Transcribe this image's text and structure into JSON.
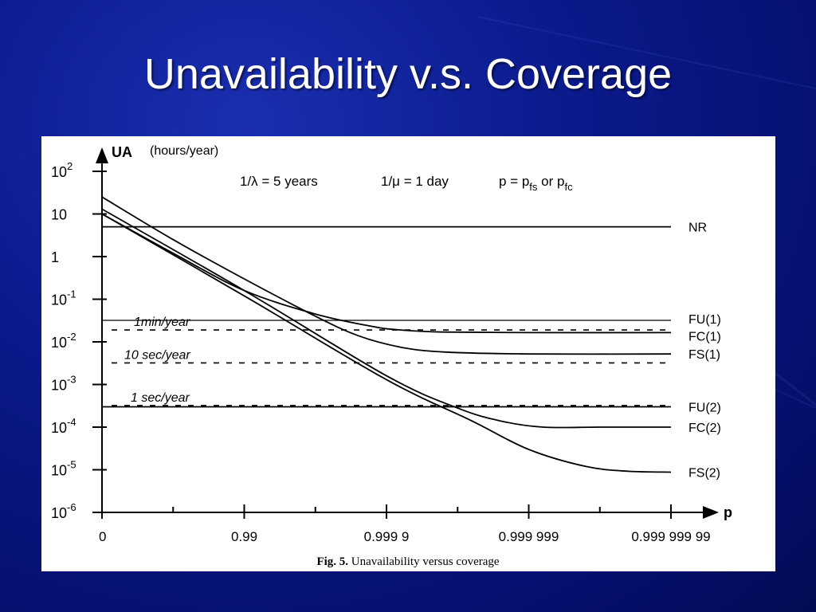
{
  "slide": {
    "title": "Unavailability v.s. Coverage"
  },
  "chart_data": {
    "type": "line",
    "y_scale": "log",
    "ylabel": "UA",
    "ylabel_unit": "(hours/year)",
    "xlabel": "p",
    "x_ticks": [
      "0",
      "0.99",
      "0.999 9",
      "0.999 999",
      "0.999 999 99"
    ],
    "y_ticks": [
      {
        "base": "10",
        "exp": "2",
        "value": 100
      },
      {
        "base": "10",
        "exp": "",
        "value": 10
      },
      {
        "base": "1",
        "exp": "",
        "value": 1
      },
      {
        "base": "10",
        "exp": "-1",
        "value": 0.1
      },
      {
        "base": "10",
        "exp": "-2",
        "value": 0.01
      },
      {
        "base": "10",
        "exp": "-3",
        "value": 0.001
      },
      {
        "base": "10",
        "exp": "-4",
        "value": 0.0001
      },
      {
        "base": "10",
        "exp": "-5",
        "value": 1e-05
      },
      {
        "base": "10",
        "exp": "-6",
        "value": 1e-06
      }
    ],
    "ylim": [
      1e-06,
      100
    ],
    "annotation": {
      "lambda_text": "1/λ = 5 years",
      "mu_text": "1/μ = 1 day",
      "p_prefix": "p = p",
      "p_sub1": "fs",
      "p_or": " or p",
      "p_sub2": "fc"
    },
    "reference_lines": [
      {
        "label": "1min/year",
        "value": 0.019
      },
      {
        "label": "10 sec/year",
        "value": 0.0032
      },
      {
        "label": "1 sec/year",
        "value": 0.00032
      }
    ],
    "series": [
      {
        "name": "NR",
        "x": [
          0,
          4
        ],
        "y": [
          5,
          5
        ]
      },
      {
        "name": "FU(1)",
        "x": [
          0,
          4
        ],
        "y": [
          0.032,
          0.032
        ]
      },
      {
        "name": "FC(1)",
        "x": [
          0,
          0.5,
          1,
          1.5,
          1.9,
          2.1,
          2.4,
          3,
          4
        ],
        "y": [
          10,
          1.2,
          0.16,
          0.045,
          0.023,
          0.019,
          0.017,
          0.0165,
          0.0165
        ]
      },
      {
        "name": "FS(1)",
        "x": [
          0,
          0.5,
          1,
          1.5,
          1.8,
          2.1,
          2.4,
          3,
          4
        ],
        "y": [
          25,
          2.5,
          0.3,
          0.04,
          0.014,
          0.0075,
          0.0058,
          0.0052,
          0.0052
        ]
      },
      {
        "name": "FU(2)",
        "x": [
          0,
          4
        ],
        "y": [
          0.0003,
          0.0003
        ]
      },
      {
        "name": "FC(2)",
        "x": [
          0,
          1,
          2,
          2.5,
          2.8,
          3.1,
          3.5,
          4
        ],
        "y": [
          13,
          0.16,
          0.0016,
          0.00028,
          0.00014,
          0.0001,
          0.0001,
          0.0001
        ]
      },
      {
        "name": "FS(2)",
        "x": [
          0,
          1,
          2,
          2.6,
          3,
          3.4,
          3.7,
          4
        ],
        "y": [
          10,
          0.12,
          0.0013,
          0.00014,
          3e-05,
          1.2e-05,
          9.2e-06,
          8.8e-06
        ]
      }
    ]
  },
  "caption": {
    "fig": "Fig. 5.",
    "text": " Unavailability versus coverage"
  }
}
